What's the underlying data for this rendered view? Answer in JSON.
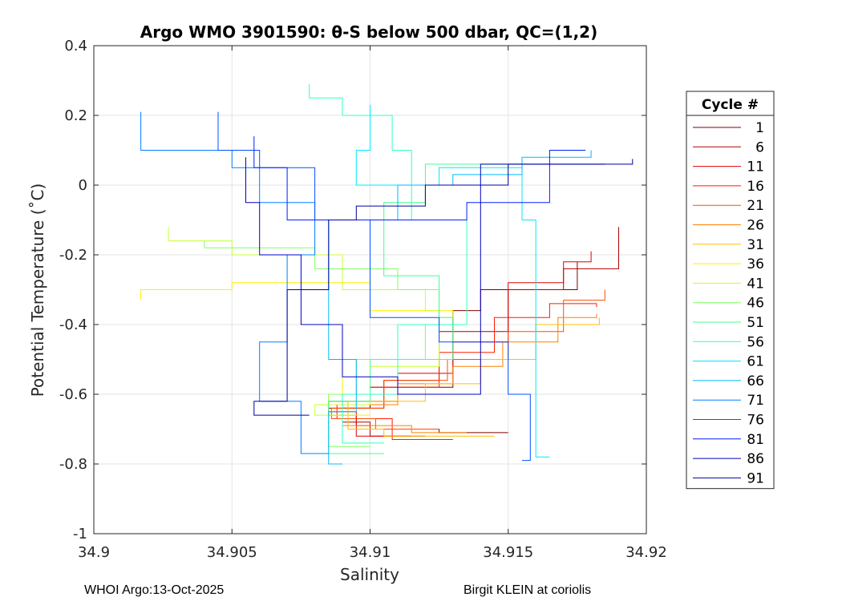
{
  "chart_data": {
    "type": "line",
    "title": "Argo WMO 3901590: θ-S below 500 dbar,  QC=(1,2)",
    "xlabel": "Salinity",
    "ylabel": "Potential Temperature (˚C)",
    "xlim": [
      34.9,
      34.92
    ],
    "ylim": [
      -1,
      0.4
    ],
    "xticks": [
      34.9,
      34.905,
      34.91,
      34.915,
      34.92
    ],
    "xtick_labels": [
      "34.9",
      "34.905",
      "34.91",
      "34.915",
      "34.92"
    ],
    "yticks": [
      -1,
      -0.8,
      -0.6,
      -0.4,
      -0.2,
      0,
      0.2,
      0.4
    ],
    "ytick_labels": [
      "-1",
      "-0.8",
      "-0.6",
      "-0.4",
      "-0.2",
      "0",
      "0.2",
      "0.4"
    ],
    "grid": true,
    "legend": {
      "title": "Cycle #",
      "placement": "outside-right",
      "entries": [
        {
          "label": "1",
          "color": "#800000"
        },
        {
          "label": "6",
          "color": "#b00000"
        },
        {
          "label": "11",
          "color": "#df0000"
        },
        {
          "label": "16",
          "color": "#ff1a00"
        },
        {
          "label": "21",
          "color": "#ff4d00"
        },
        {
          "label": "26",
          "color": "#ff8000"
        },
        {
          "label": "31",
          "color": "#ffbf00"
        },
        {
          "label": "36",
          "color": "#ffee00"
        },
        {
          "label": "41",
          "color": "#c8ff30"
        },
        {
          "label": "46",
          "color": "#80ff60"
        },
        {
          "label": "51",
          "color": "#40ff90"
        },
        {
          "label": "56",
          "color": "#30ffc0"
        },
        {
          "label": "61",
          "color": "#00e8ff"
        },
        {
          "label": "66",
          "color": "#00b8ff"
        },
        {
          "label": "71",
          "color": "#0080ff"
        },
        {
          "label": "76",
          "color": "#0050ff"
        },
        {
          "label": "81",
          "color": "#0020ff"
        },
        {
          "label": "86",
          "color": "#0000c0"
        },
        {
          "label": "91",
          "color": "#0000a0"
        }
      ]
    },
    "series": [
      {
        "name": "1",
        "color": "#800000",
        "x": [
          34.9175,
          34.914,
          34.913,
          34.91,
          34.9085,
          34.9095,
          34.91,
          34.9125,
          34.915
        ],
        "y": [
          -0.22,
          -0.3,
          -0.36,
          -0.58,
          -0.64,
          -0.66,
          -0.69,
          -0.7,
          -0.71
        ]
      },
      {
        "name": "6",
        "color": "#b00000",
        "x": [
          34.919,
          34.917,
          34.915,
          34.9125,
          34.9105,
          34.909,
          34.91,
          34.9115
        ],
        "y": [
          -0.12,
          -0.24,
          -0.3,
          -0.42,
          -0.56,
          -0.64,
          -0.68,
          -0.72
        ]
      },
      {
        "name": "11",
        "color": "#df0000",
        "x": [
          34.918,
          34.917,
          34.915,
          34.913,
          34.911,
          34.9085,
          34.9095,
          34.912
        ],
        "y": [
          -0.19,
          -0.22,
          -0.28,
          -0.45,
          -0.54,
          -0.62,
          -0.65,
          -0.72
        ]
      },
      {
        "name": "16",
        "color": "#ff1a00",
        "x": [
          34.9182,
          34.9165,
          34.9145,
          34.9125,
          34.91,
          34.9088,
          34.9108,
          34.913
        ],
        "y": [
          -0.35,
          -0.34,
          -0.38,
          -0.48,
          -0.58,
          -0.63,
          -0.67,
          -0.73
        ]
      },
      {
        "name": "21",
        "color": "#ff4d00",
        "x": [
          34.9185,
          34.917,
          34.915,
          34.9128,
          34.9105,
          34.9086,
          34.9102,
          34.9125
        ],
        "y": [
          -0.3,
          -0.33,
          -0.42,
          -0.5,
          -0.56,
          -0.64,
          -0.67,
          -0.7
        ]
      },
      {
        "name": "26",
        "color": "#ff8000",
        "x": [
          34.9182,
          34.9168,
          34.9148,
          34.913,
          34.911,
          34.909,
          34.9115,
          34.9135
        ],
        "y": [
          -0.37,
          -0.38,
          -0.45,
          -0.52,
          -0.57,
          -0.63,
          -0.69,
          -0.71
        ]
      },
      {
        "name": "31",
        "color": "#ffbf00",
        "x": [
          34.9183,
          34.916,
          34.914,
          34.912,
          34.9092,
          34.9105,
          34.9145
        ],
        "y": [
          -0.38,
          -0.4,
          -0.5,
          -0.57,
          -0.62,
          -0.7,
          -0.72
        ]
      },
      {
        "name": "36",
        "color": "#ffee00",
        "x": [
          34.9017,
          34.905,
          34.91,
          34.913,
          34.9125,
          34.909,
          34.9085,
          34.91
        ],
        "y": [
          -0.33,
          -0.3,
          -0.28,
          -0.36,
          -0.38,
          -0.5,
          -0.6,
          -0.66
        ]
      },
      {
        "name": "41",
        "color": "#c8ff30",
        "x": [
          34.9027,
          34.905,
          34.909,
          34.912,
          34.9125,
          34.91,
          34.908,
          34.9095
        ],
        "y": [
          -0.12,
          -0.16,
          -0.2,
          -0.3,
          -0.36,
          -0.52,
          -0.63,
          -0.66
        ]
      },
      {
        "name": "46",
        "color": "#80ff60",
        "x": [
          34.904,
          34.908,
          34.911,
          34.9125,
          34.912,
          34.9095,
          34.9085,
          34.91
        ],
        "y": [
          -0.16,
          -0.18,
          -0.24,
          -0.3,
          -0.4,
          -0.5,
          -0.6,
          -0.75
        ]
      },
      {
        "name": "51",
        "color": "#40ff90",
        "x": [
          34.915,
          34.912,
          34.9105,
          34.9125,
          34.913,
          34.91,
          34.9085,
          34.9105
        ],
        "y": [
          0.05,
          0.06,
          -0.05,
          -0.26,
          -0.38,
          -0.5,
          -0.62,
          -0.77
        ]
      },
      {
        "name": "56",
        "color": "#30ffc0",
        "x": [
          34.9078,
          34.909,
          34.9108,
          34.9115,
          34.9135,
          34.911,
          34.909,
          34.9105
        ],
        "y": [
          0.29,
          0.25,
          0.2,
          0.1,
          -0.1,
          -0.4,
          -0.6,
          -0.74
        ]
      },
      {
        "name": "61",
        "color": "#00e8ff",
        "x": [
          34.91,
          34.9095,
          34.9125,
          34.9155,
          34.916,
          34.916,
          34.9165
        ],
        "y": [
          0.23,
          0.1,
          0.0,
          0.05,
          -0.1,
          -0.65,
          -0.78
        ]
      },
      {
        "name": "66",
        "color": "#00b8ff",
        "x": [
          34.918,
          34.9155,
          34.913,
          34.911,
          34.9085,
          34.9095,
          34.9085,
          34.909
        ],
        "y": [
          0.1,
          0.08,
          0.03,
          0.0,
          -0.1,
          -0.5,
          -0.65,
          -0.8
        ]
      },
      {
        "name": "71",
        "color": "#0080ff",
        "x": [
          34.9017,
          34.905,
          34.906,
          34.908,
          34.907,
          34.906,
          34.9075,
          34.9085
        ],
        "y": [
          0.21,
          0.1,
          0.05,
          -0.05,
          -0.2,
          -0.45,
          -0.62,
          -0.77
        ]
      },
      {
        "name": "76",
        "color": "#0050ff",
        "x": [
          34.9045,
          34.906,
          34.908,
          34.91,
          34.9125,
          34.915,
          34.9158,
          34.9155
        ],
        "y": [
          0.21,
          0.1,
          0.05,
          -0.1,
          -0.38,
          -0.45,
          -0.6,
          -0.79
        ]
      },
      {
        "name": "81",
        "color": "#0020ff",
        "x": [
          34.9058,
          34.907,
          34.908,
          34.9105,
          34.9135,
          34.9165,
          34.9178
        ],
        "y": [
          0.14,
          0.05,
          -0.1,
          -0.1,
          -0.1,
          -0.05,
          0.1
        ]
      },
      {
        "name": "86",
        "color": "#0000c0",
        "x": [
          34.9055,
          34.906,
          34.9075,
          34.909,
          34.911,
          34.914,
          34.9185
        ],
        "y": [
          0.08,
          -0.05,
          -0.2,
          -0.4,
          -0.55,
          -0.6,
          0.06
        ]
      },
      {
        "name": "91",
        "color": "#0000a0",
        "x": [
          34.9195,
          34.915,
          34.912,
          34.9095,
          34.9085,
          34.907,
          34.9058,
          34.9078
        ],
        "y": [
          0.075,
          0.06,
          0.0,
          -0.06,
          -0.1,
          -0.3,
          -0.62,
          -0.66
        ]
      }
    ]
  },
  "footer": {
    "left": "WHOI Argo:13-Oct-2025",
    "right": "Birgit KLEIN at coriolis"
  }
}
